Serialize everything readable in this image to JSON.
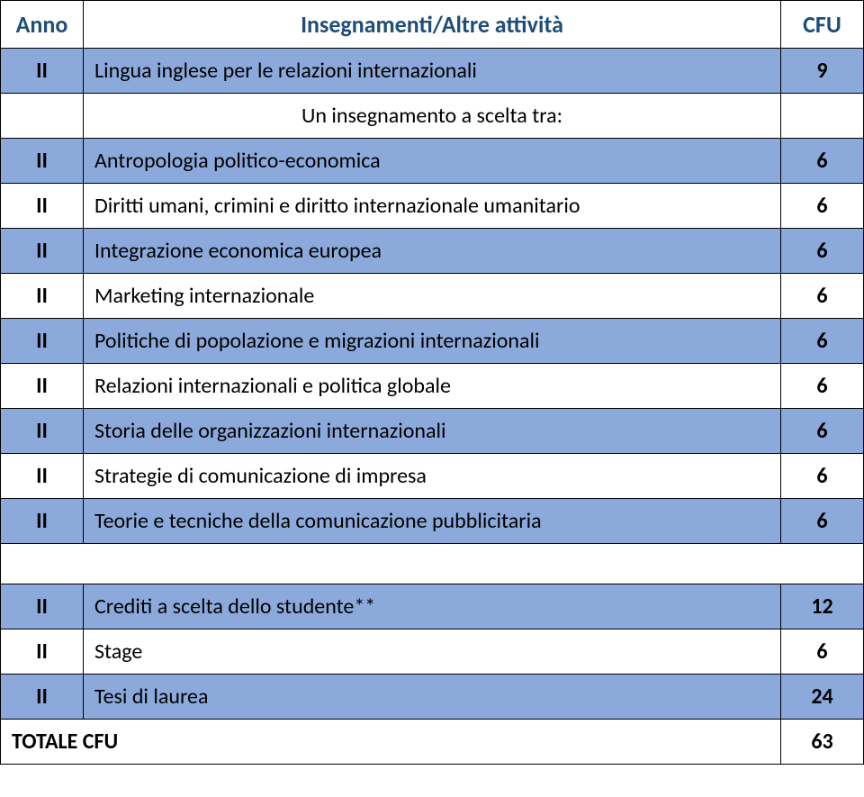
{
  "colors": {
    "header_text": "#1f4e79",
    "body_text": "#000000",
    "shade_bg": "#8ba9db",
    "plain_bg": "#ffffff",
    "border": "#000000"
  },
  "fonts": {
    "family": "Calibri",
    "header_size_pt": 20,
    "body_size_pt": 18
  },
  "headers": {
    "anno": "Anno",
    "attivita": "Insegnamenti/Altre attività",
    "cfu": "CFU"
  },
  "section_label": "Un insegnamento a scelta tra:",
  "rows": [
    {
      "year": "II",
      "name": "Lingua inglese per le relazioni internazionali",
      "cfu": "9"
    },
    {
      "year": "II",
      "name": "Antropologia politico-economica",
      "cfu": "6"
    },
    {
      "year": "II",
      "name": "Diritti umani, crimini e diritto internazionale umanitario",
      "cfu": "6"
    },
    {
      "year": "II",
      "name": "Integrazione economica europea",
      "cfu": "6"
    },
    {
      "year": "II",
      "name": "Marketing internazionale",
      "cfu": "6"
    },
    {
      "year": "II",
      "name": "Politiche di popolazione e migrazioni internazionali",
      "cfu": "6"
    },
    {
      "year": "II",
      "name": "Relazioni internazionali e politica globale",
      "cfu": "6"
    },
    {
      "year": "II",
      "name": "Storia delle organizzazioni internazionali",
      "cfu": "6"
    },
    {
      "year": "II",
      "name": "Strategie di comunicazione di impresa",
      "cfu": "6"
    },
    {
      "year": "II",
      "name": "Teorie e tecniche della comunicazione pubblicitaria",
      "cfu": "6"
    }
  ],
  "final_rows": [
    {
      "year": "II",
      "name": "Crediti a scelta dello studente**",
      "cfu": "12"
    },
    {
      "year": "II",
      "name": "Stage",
      "cfu": "6"
    },
    {
      "year": "II",
      "name": "Tesi di laurea",
      "cfu": "24"
    }
  ],
  "totale": {
    "label": "TOTALE CFU",
    "cfu": "63"
  }
}
